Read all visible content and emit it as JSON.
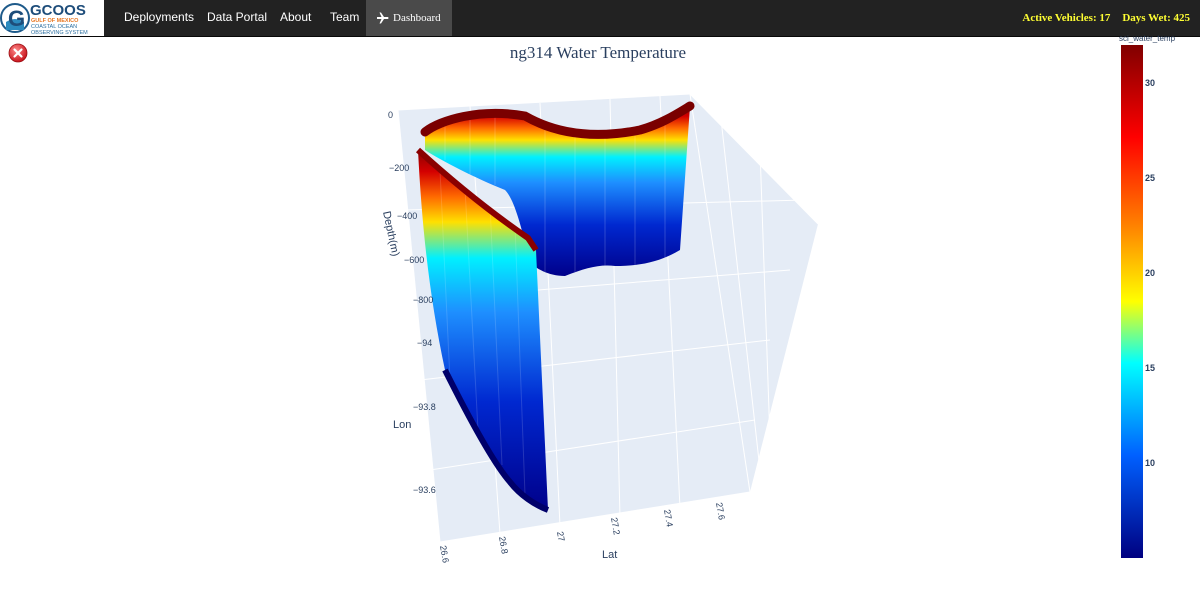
{
  "nav": {
    "logo": {
      "letter": "G",
      "name": "GCOOS",
      "line1": "GULF OF MEXICO",
      "line2": "COASTAL OCEAN",
      "line3": "OBSERVING SYSTEM"
    },
    "items": [
      {
        "label": "Deployments"
      },
      {
        "label": "Data Portal"
      },
      {
        "label": "About"
      },
      {
        "label": "Team"
      }
    ],
    "active": {
      "label": "Dashboard",
      "icon": "airplane-icon"
    },
    "stats": {
      "active_vehicles": "Active Vehicles: 17",
      "days_wet": "Days Wet: 425"
    },
    "accent": "#ffff33"
  },
  "close_icon": "close-icon",
  "chart_data": {
    "type": "scatter3d",
    "title": "ng314 Water Temperature",
    "axes": {
      "x": {
        "label": "Lat",
        "ticks": [
          "26.6",
          "26.8",
          "27",
          "27.2",
          "27.4",
          "27.6"
        ]
      },
      "y": {
        "label": "Lon",
        "ticks": [
          "−94",
          "−93.8",
          "−93.6"
        ]
      },
      "z": {
        "label": "Depth(m)",
        "ticks": [
          "0",
          "−200",
          "−400",
          "−600",
          "−800"
        ],
        "range": [
          -800,
          0
        ]
      }
    },
    "colorbar": {
      "title": "sci_water_temp",
      "ticks": [
        30,
        25,
        20,
        15,
        10
      ],
      "range": [
        5,
        32
      ],
      "colorscale": [
        "#000080",
        "#0000ff",
        "#00ffff",
        "#ffff00",
        "#ff7f00",
        "#ff0000",
        "#800000"
      ]
    },
    "series": [
      {
        "path_lat": [
          26.58,
          26.7,
          26.82,
          26.95,
          27.0
        ],
        "path_lon": [
          -93.68,
          -93.74,
          -93.8,
          -93.9,
          -94.0
        ],
        "dive_depth": [
          -550,
          -620,
          -700,
          -780,
          -800
        ]
      }
    ]
  }
}
